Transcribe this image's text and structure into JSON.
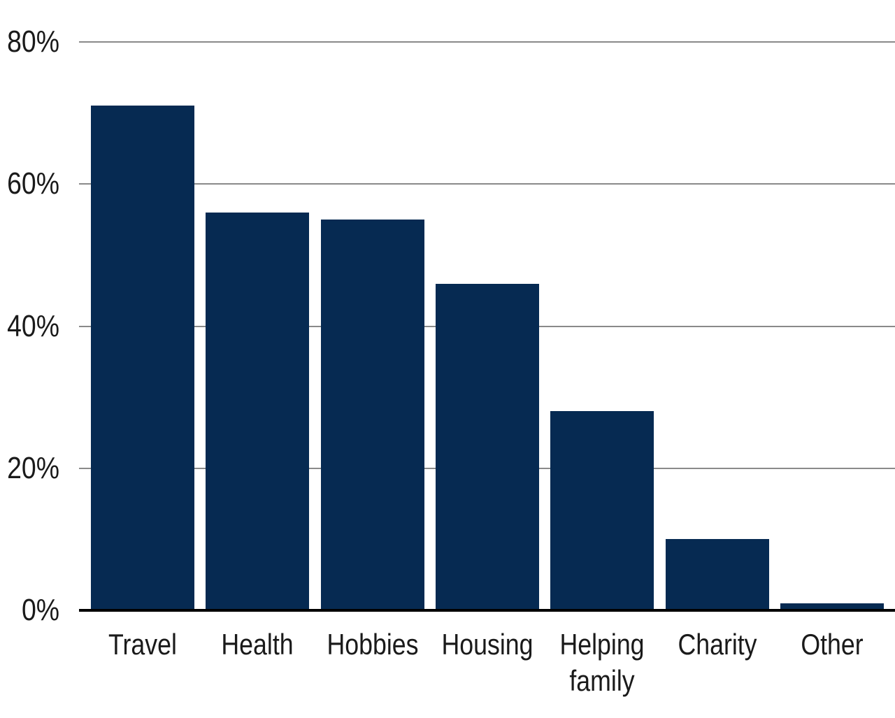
{
  "chart_data": {
    "type": "bar",
    "title": "",
    "xlabel": "",
    "ylabel": "",
    "categories": [
      "Travel",
      "Health",
      "Hobbies",
      "Housing",
      "Helping family",
      "Charity",
      "Other"
    ],
    "values": [
      71,
      56,
      55,
      46,
      28,
      10,
      1
    ],
    "ylim": [
      0,
      80
    ],
    "yticks": [
      0,
      20,
      40,
      60,
      80
    ],
    "ytick_labels": [
      "0%",
      "20%",
      "40%",
      "60%",
      "80%"
    ],
    "grid": true,
    "legend": false,
    "colors": {
      "bar": "#062a52",
      "gridline": "#8a8a8a",
      "axis": "#000000",
      "text": "#1a1a1a",
      "background": "#ffffff"
    }
  }
}
